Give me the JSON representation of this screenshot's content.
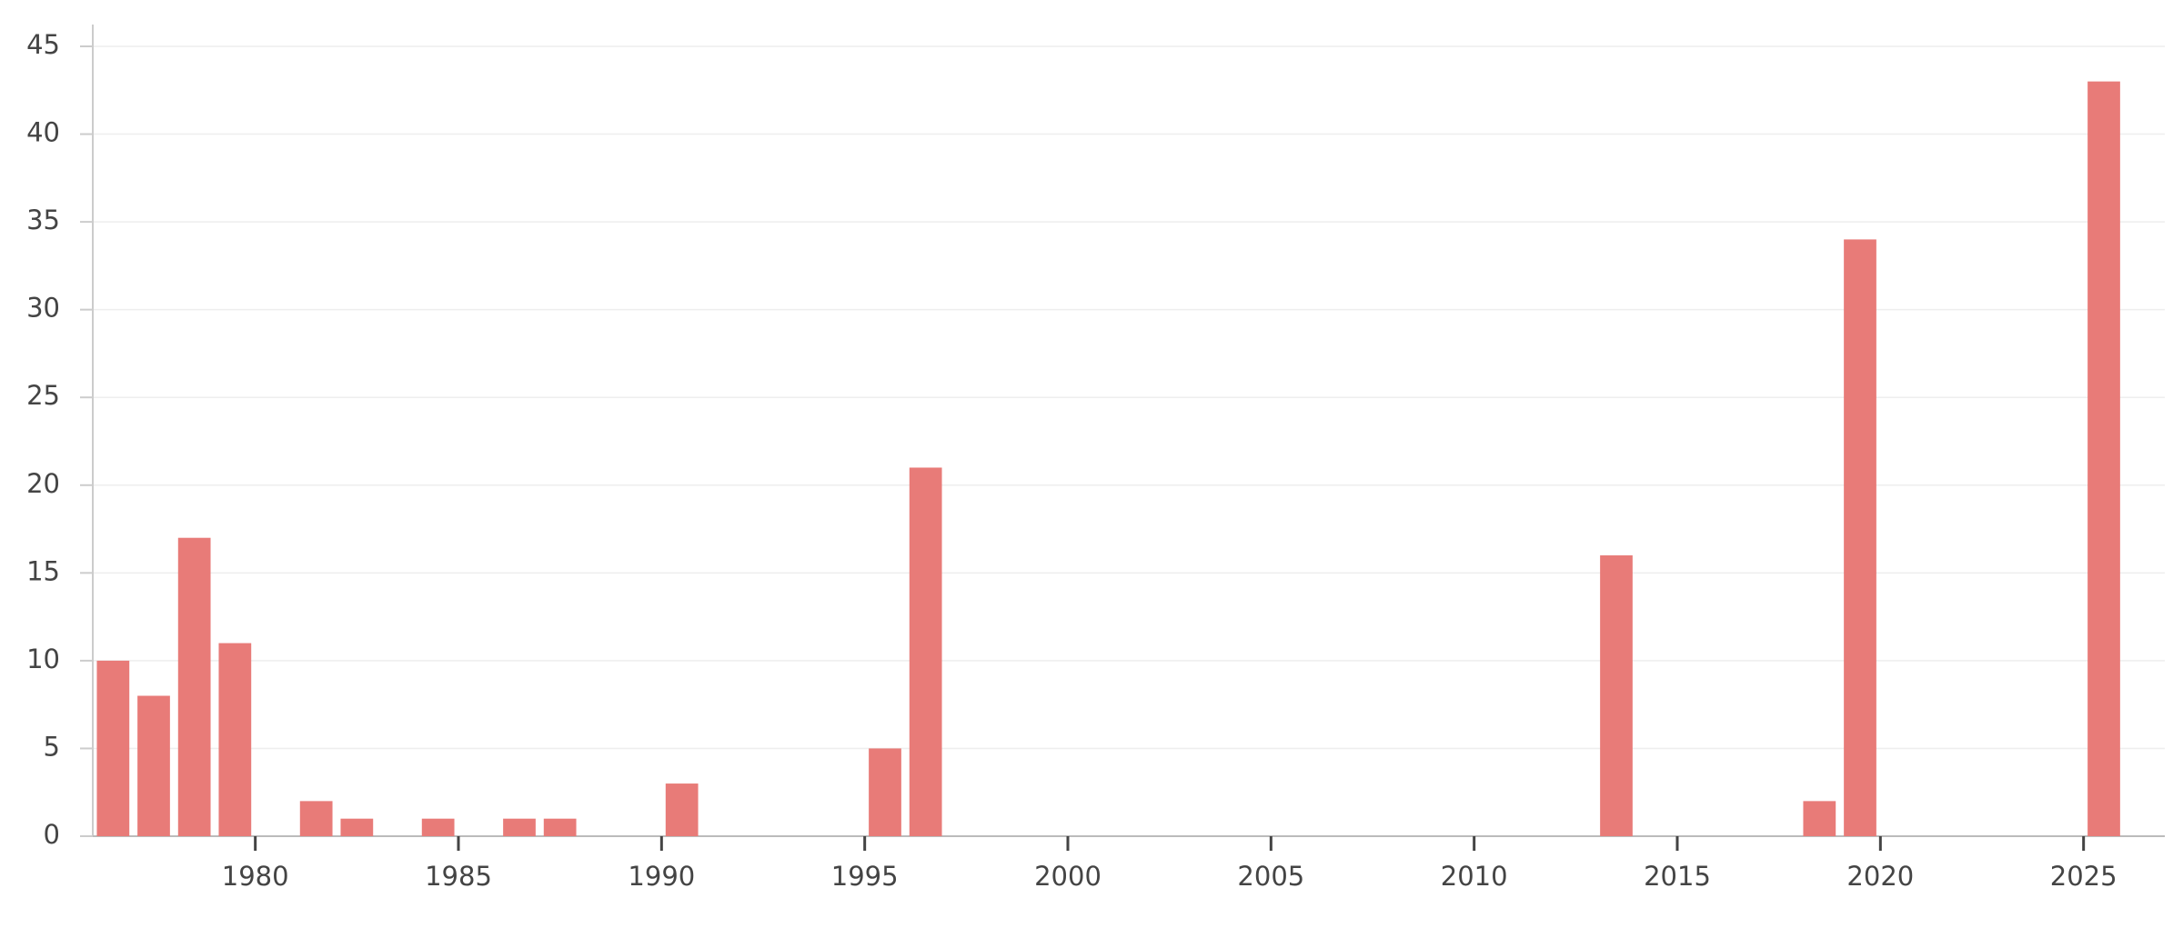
{
  "chart_data": {
    "type": "bar",
    "x": [
      1976,
      1977,
      1978,
      1979,
      1981,
      1982,
      1984,
      1986,
      1987,
      1990,
      1995,
      1996,
      2013,
      2018,
      2019,
      2025
    ],
    "values": [
      10,
      8,
      17,
      11,
      2,
      1,
      1,
      1,
      1,
      3,
      5,
      21,
      16,
      2,
      34,
      43
    ],
    "color": "#e87b78",
    "xlim": [
      1976,
      2027
    ],
    "xticks": [
      1980,
      1985,
      1990,
      1995,
      2000,
      2005,
      2010,
      2015,
      2020,
      2025
    ],
    "ylim": [
      0,
      45
    ],
    "yticks": [
      0,
      5,
      10,
      15,
      20,
      25,
      30,
      35,
      40,
      45
    ],
    "grid": true
  }
}
